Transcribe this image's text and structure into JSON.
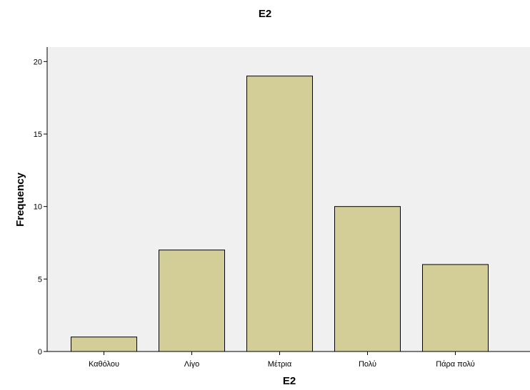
{
  "chart_data": {
    "type": "bar",
    "title": "E2",
    "xlabel": "E2",
    "ylabel": "Frequency",
    "categories": [
      "Καθόλου",
      "Λίγο",
      "Μέτρια",
      "Πολύ",
      "Πάρα πολύ"
    ],
    "values": [
      1,
      7,
      19,
      10,
      6
    ],
    "ylim": [
      0,
      21
    ],
    "yticks": [
      0,
      5,
      10,
      15,
      20
    ],
    "grid": false,
    "colors": {
      "bar_fill": "#d3ce97",
      "bar_stroke": "#000000",
      "plot_background": "#f0f0f0",
      "axis": "#000000"
    }
  }
}
